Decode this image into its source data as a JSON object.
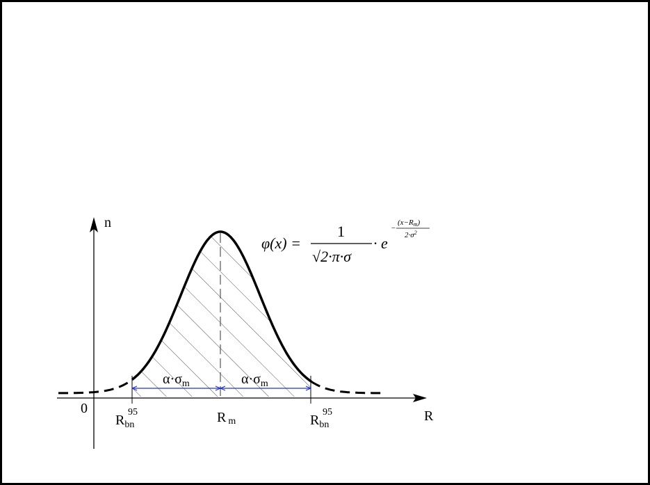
{
  "axes": {
    "y_label": "n",
    "x_label": "R",
    "origin": "0"
  },
  "markers": [
    {
      "base": "R",
      "sub": "bn",
      "sup": "95"
    },
    {
      "base": "R",
      "sub": "m"
    },
    {
      "base": "R",
      "sub": "bn",
      "sup": "95"
    }
  ],
  "intervals": [
    {
      "text": "α·σ",
      "sub": "m"
    },
    {
      "text": "α·σ",
      "sub": "m"
    }
  ],
  "formula": {
    "lhs": "φ(x) =",
    "numerator": "1",
    "denominator": "√2·π·σ",
    "times_e": "· e",
    "exp_sign": "−",
    "exp_num": "(x−R",
    "exp_num_sub": "m",
    "exp_num_close": ")",
    "exp_den": "2·σ",
    "exp_den_sup": "2"
  }
}
